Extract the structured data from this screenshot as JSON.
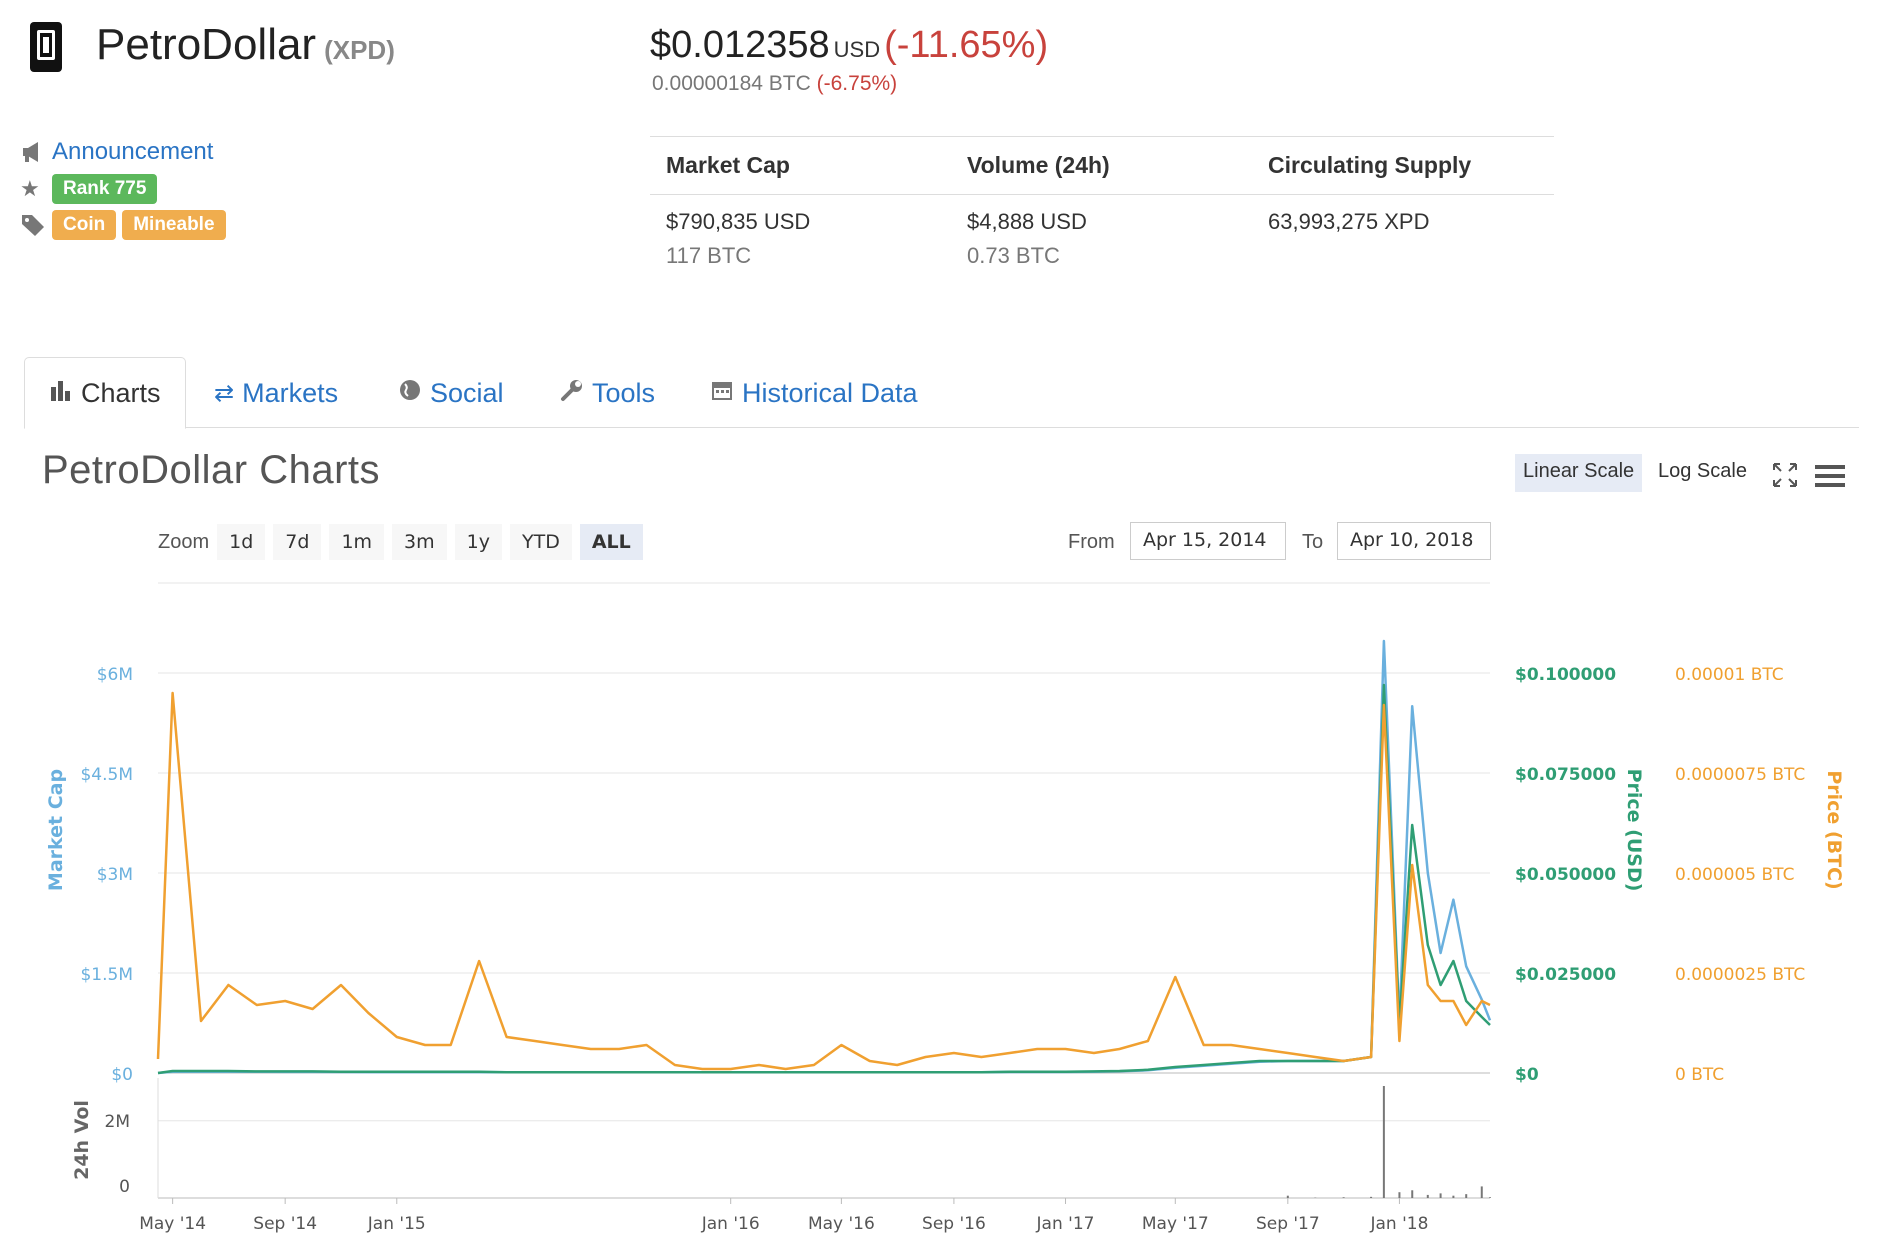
{
  "coin": {
    "name": "PetroDollar",
    "symbol": "(XPD)",
    "price_usd": "$0.012358",
    "price_currency": "USD",
    "price_change_usd": "(-11.65%)",
    "price_btc": "0.00000184 BTC",
    "price_change_btc": "(-6.75%)"
  },
  "meta": {
    "announcement": "Announcement",
    "rank": "Rank 775",
    "tags": [
      "Coin",
      "Mineable"
    ]
  },
  "stats": {
    "headers": [
      "Market Cap",
      "Volume (24h)",
      "Circulating Supply"
    ],
    "values": [
      {
        "main": "$790,835 USD",
        "sub": "117 BTC"
      },
      {
        "main": "$4,888 USD",
        "sub": "0.73 BTC"
      },
      {
        "main": "63,993,275 XPD",
        "sub": ""
      }
    ]
  },
  "tabs": [
    {
      "label": "Charts",
      "icon": "bar-chart-icon",
      "active": true
    },
    {
      "label": "Markets",
      "icon": "exchange-icon",
      "active": false
    },
    {
      "label": "Social",
      "icon": "globe-icon",
      "active": false
    },
    {
      "label": "Tools",
      "icon": "wrench-icon",
      "active": false
    },
    {
      "label": "Historical Data",
      "icon": "calendar-icon",
      "active": false
    }
  ],
  "chart_header": {
    "title": "PetroDollar Charts",
    "linear_scale": "Linear Scale",
    "log_scale": "Log Scale",
    "zoom_label": "Zoom",
    "zoom_options": [
      "1d",
      "7d",
      "1m",
      "3m",
      "1y",
      "YTD",
      "ALL"
    ],
    "zoom_selected": "ALL",
    "from_label": "From",
    "from_value": "Apr 15, 2014",
    "to_label": "To",
    "to_value": "Apr 10, 2018"
  },
  "colors": {
    "market_cap": "#6ab0de",
    "price_usd": "#2f9e74",
    "price_btc": "#f0a030",
    "volume": "#777777",
    "link": "#2a74c4",
    "negative": "#c8423c"
  },
  "chart_data": {
    "type": "line",
    "x_tick_labels": [
      "May '14",
      "Sep '14",
      "Jan '15",
      "Jan '16",
      "May '16",
      "Sep '16",
      "Jan '17",
      "May '17",
      "Sep '17",
      "Jan '18"
    ],
    "axes": {
      "market_cap": {
        "label": "Market Cap",
        "ticks": [
          "$0",
          "$1.5M",
          "$3M",
          "$4.5M",
          "$6M"
        ],
        "ylim": [
          0,
          6000000
        ]
      },
      "price_usd": {
        "label": "Price (USD)",
        "ticks": [
          "$0",
          "$0.025000",
          "$0.050000",
          "$0.075000",
          "$0.100000"
        ],
        "ylim": [
          0,
          0.1
        ]
      },
      "price_btc": {
        "label": "Price (BTC)",
        "ticks": [
          "0 BTC",
          "0.0000025 BTC",
          "0.000005 BTC",
          "0.0000075 BTC",
          "0.00001 BTC"
        ],
        "ylim": [
          0,
          1e-05
        ]
      },
      "volume": {
        "label": "24h Vol",
        "ticks": [
          "0",
          "2M"
        ],
        "ylim": [
          0,
          2900000
        ]
      }
    },
    "x": [
      "2014-04-15",
      "2014-05-01",
      "2014-06-01",
      "2014-07-01",
      "2014-08-01",
      "2014-09-01",
      "2014-10-01",
      "2014-11-01",
      "2014-12-01",
      "2015-01-01",
      "2015-02-01",
      "2015-03-01",
      "2015-04-01",
      "2015-05-01",
      "2015-06-01",
      "2015-07-01",
      "2015-08-01",
      "2015-09-01",
      "2015-10-01",
      "2015-11-01",
      "2015-12-01",
      "2016-01-01",
      "2016-02-01",
      "2016-03-01",
      "2016-04-01",
      "2016-05-01",
      "2016-06-01",
      "2016-07-01",
      "2016-08-01",
      "2016-09-01",
      "2016-10-01",
      "2016-11-01",
      "2016-12-01",
      "2017-01-01",
      "2017-02-01",
      "2017-03-01",
      "2017-04-01",
      "2017-05-01",
      "2017-06-01",
      "2017-07-01",
      "2017-08-01",
      "2017-09-01",
      "2017-10-01",
      "2017-11-01",
      "2017-12-01",
      "2017-12-15",
      "2018-01-01",
      "2018-01-15",
      "2018-02-01",
      "2018-02-15",
      "2018-03-01",
      "2018-03-15",
      "2018-04-01",
      "2018-04-10"
    ],
    "series": [
      {
        "name": "Price (BTC)",
        "axis": "price_btc",
        "values": [
          3.5e-07,
          9.5e-06,
          1.3e-06,
          2.2e-06,
          1.7e-06,
          1.8e-06,
          1.6e-06,
          2.2e-06,
          1.5e-06,
          9e-07,
          7e-07,
          7e-07,
          2.8e-06,
          9e-07,
          8e-07,
          7e-07,
          6e-07,
          6e-07,
          7e-07,
          2e-07,
          1e-07,
          1e-07,
          2e-07,
          1e-07,
          2e-07,
          7e-07,
          3e-07,
          2e-07,
          4e-07,
          5e-07,
          4e-07,
          5e-07,
          6e-07,
          6e-07,
          5e-07,
          6e-07,
          8e-07,
          2.4e-06,
          7e-07,
          7e-07,
          6e-07,
          5e-07,
          4e-07,
          3e-07,
          4e-07,
          9.2e-06,
          8e-07,
          5.2e-06,
          2.2e-06,
          1.8e-06,
          1.8e-06,
          1.2e-06,
          1.8e-06,
          1.7e-06
        ]
      },
      {
        "name": "Price (USD)",
        "axis": "price_usd",
        "values": [
          0.0,
          0.0005,
          0.0005,
          0.0005,
          0.0004,
          0.0004,
          0.0004,
          0.0003,
          0.0003,
          0.0003,
          0.0003,
          0.0003,
          0.0003,
          0.0002,
          0.0002,
          0.0002,
          0.0002,
          0.0002,
          0.0002,
          0.0002,
          0.0002,
          0.0002,
          0.0002,
          0.0002,
          0.0002,
          0.0002,
          0.0002,
          0.0002,
          0.0002,
          0.0002,
          0.0002,
          0.0003,
          0.0003,
          0.0003,
          0.0004,
          0.0005,
          0.0008,
          0.0015,
          0.002,
          0.0025,
          0.003,
          0.003,
          0.003,
          0.003,
          0.004,
          0.097,
          0.012,
          0.062,
          0.032,
          0.022,
          0.028,
          0.018,
          0.014,
          0.012
        ]
      },
      {
        "name": "Market Cap",
        "axis": "market_cap",
        "values": [
          0,
          20000,
          20000,
          20000,
          18000,
          17000,
          16000,
          15000,
          14000,
          14000,
          13000,
          13000,
          13000,
          12000,
          12000,
          11000,
          11000,
          11000,
          11000,
          11000,
          11000,
          11000,
          11000,
          11000,
          11000,
          11000,
          11000,
          12000,
          12000,
          12000,
          12000,
          15000,
          15000,
          15000,
          20000,
          25000,
          40000,
          80000,
          110000,
          140000,
          170000,
          180000,
          180000,
          180000,
          240000,
          6480000,
          760000,
          5500000,
          3000000,
          1800000,
          2600000,
          1600000,
          1100000,
          790835
        ]
      },
      {
        "name": "24h Vol",
        "axis": "volume",
        "values": [
          0,
          0,
          0,
          0,
          0,
          0,
          0,
          0,
          0,
          0,
          0,
          0,
          0,
          0,
          0,
          0,
          0,
          0,
          0,
          0,
          0,
          0,
          0,
          0,
          0,
          0,
          0,
          0,
          0,
          0,
          0,
          0,
          0,
          0,
          0,
          0,
          0,
          0,
          0,
          0,
          0,
          60000,
          10000,
          20000,
          30000,
          2900000,
          150000,
          200000,
          80000,
          120000,
          60000,
          100000,
          300000,
          20000
        ]
      }
    ]
  }
}
